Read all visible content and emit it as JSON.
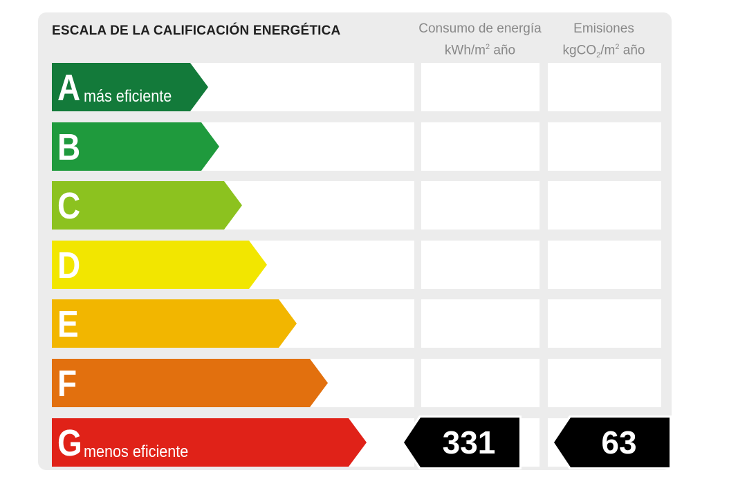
{
  "title": "ESCALA DE LA CALIFICACIÓN ENERGÉTICA",
  "columns": {
    "energy_line1": "Consumo de energía",
    "energy_line2_pre": "kWh/m",
    "energy_line2_sup": "2",
    "energy_line2_post": " año",
    "emissions_line1": "Emisiones",
    "emissions_line2_pre": "kgCO",
    "emissions_line2_sub": "2",
    "emissions_line2_post": "/m",
    "emissions_line2_sup": "2",
    "emissions_line2_end": " año"
  },
  "grades": [
    {
      "letter": "A",
      "sublabel": "más eficiente",
      "color": "#137a3a"
    },
    {
      "letter": "B",
      "sublabel": "",
      "color": "#1f9a3d"
    },
    {
      "letter": "C",
      "sublabel": "",
      "color": "#8cc21f"
    },
    {
      "letter": "D",
      "sublabel": "",
      "color": "#f2e600"
    },
    {
      "letter": "E",
      "sublabel": "",
      "color": "#f2b600"
    },
    {
      "letter": "F",
      "sublabel": "",
      "color": "#e2700e"
    },
    {
      "letter": "G",
      "sublabel": "menos eficiente",
      "color": "#e02218"
    }
  ],
  "rating": {
    "grade": "G",
    "energy_value": "331",
    "emissions_value": "63",
    "indicator_color": "#000000"
  }
}
